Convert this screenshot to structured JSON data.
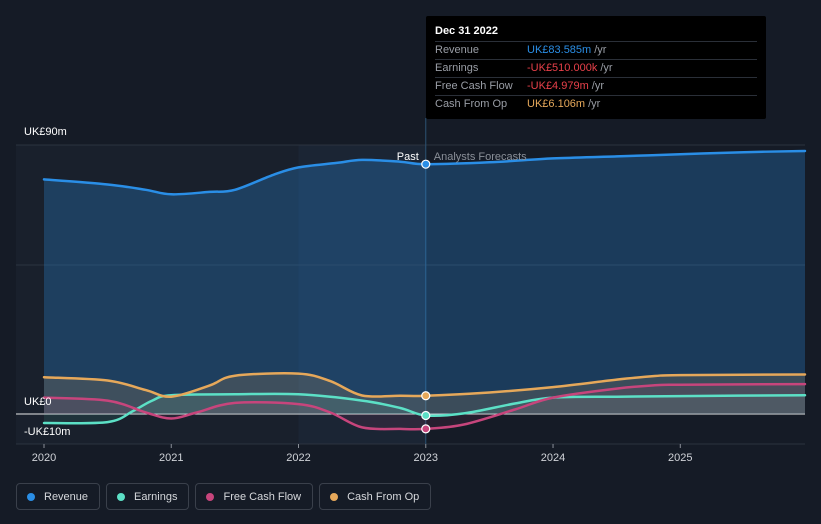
{
  "chart_data": {
    "type": "line",
    "y_axis_labels": [
      "UK£90m",
      "UK£0",
      "-UK£10m"
    ],
    "ylim": [
      -10,
      90
    ],
    "x_ticks": [
      "2020",
      "2021",
      "2022",
      "2023",
      "2024",
      "2025"
    ],
    "xlim": [
      2019.78,
      2025.98
    ],
    "past_label": "Past",
    "forecast_label": "Analysts Forecasts",
    "divider_x": 2023.0,
    "highlight_from": 2022.0,
    "series": [
      {
        "name": "Revenue",
        "color": "#2a8ee6",
        "points": [
          [
            2020.0,
            78.5
          ],
          [
            2020.5,
            76.8
          ],
          [
            2020.8,
            75.0
          ],
          [
            2021.0,
            73.5
          ],
          [
            2021.3,
            74.3
          ],
          [
            2021.5,
            75.0
          ],
          [
            2021.8,
            80.0
          ],
          [
            2022.0,
            82.5
          ],
          [
            2022.3,
            84.0
          ],
          [
            2022.5,
            85.0
          ],
          [
            2022.8,
            84.4
          ],
          [
            2023.0,
            83.585
          ],
          [
            2023.5,
            84.2
          ],
          [
            2024.0,
            85.5
          ],
          [
            2024.5,
            86.2
          ],
          [
            2025.0,
            86.9
          ],
          [
            2025.5,
            87.6
          ],
          [
            2025.98,
            88.0
          ]
        ]
      },
      {
        "name": "Earnings",
        "color": "#5ce0c6",
        "points": [
          [
            2020.0,
            -3.0
          ],
          [
            2020.5,
            -2.7
          ],
          [
            2020.7,
            1.0
          ],
          [
            2020.85,
            4.5
          ],
          [
            2021.0,
            6.3
          ],
          [
            2021.5,
            6.6
          ],
          [
            2022.0,
            6.6
          ],
          [
            2022.5,
            4.5
          ],
          [
            2022.8,
            2.0
          ],
          [
            2023.0,
            -0.51
          ],
          [
            2023.3,
            0.2
          ],
          [
            2023.7,
            3.5
          ],
          [
            2024.0,
            5.5
          ],
          [
            2024.5,
            5.8
          ],
          [
            2025.0,
            6.0
          ],
          [
            2025.98,
            6.3
          ]
        ]
      },
      {
        "name": "Free Cash Flow",
        "color": "#c7457c",
        "points": [
          [
            2020.0,
            5.5
          ],
          [
            2020.5,
            4.5
          ],
          [
            2020.8,
            0.5
          ],
          [
            2021.0,
            -1.5
          ],
          [
            2021.2,
            0.5
          ],
          [
            2021.5,
            3.7
          ],
          [
            2022.0,
            3.3
          ],
          [
            2022.25,
            0.5
          ],
          [
            2022.5,
            -4.5
          ],
          [
            2022.8,
            -5.0
          ],
          [
            2023.0,
            -4.979
          ],
          [
            2023.3,
            -3.5
          ],
          [
            2023.7,
            1.5
          ],
          [
            2024.0,
            5.5
          ],
          [
            2024.5,
            8.5
          ],
          [
            2024.8,
            9.6
          ],
          [
            2025.0,
            9.8
          ],
          [
            2025.98,
            10.0
          ]
        ]
      },
      {
        "name": "Cash From Op",
        "color": "#e6a85a",
        "points": [
          [
            2020.0,
            12.3
          ],
          [
            2020.5,
            11.2
          ],
          [
            2020.8,
            8.0
          ],
          [
            2021.0,
            5.8
          ],
          [
            2021.3,
            9.5
          ],
          [
            2021.5,
            12.8
          ],
          [
            2022.0,
            13.5
          ],
          [
            2022.25,
            11.0
          ],
          [
            2022.5,
            6.2
          ],
          [
            2022.8,
            6.1
          ],
          [
            2023.0,
            6.106
          ],
          [
            2023.5,
            7.2
          ],
          [
            2024.0,
            9.0
          ],
          [
            2024.5,
            11.5
          ],
          [
            2024.8,
            12.7
          ],
          [
            2025.0,
            13.0
          ],
          [
            2025.98,
            13.2
          ]
        ]
      }
    ]
  },
  "tooltip": {
    "date": "Dec 31 2022",
    "rows": [
      {
        "label": "Revenue",
        "value": "UK£83.585m",
        "unit": "/yr",
        "color": "#2a8ee6"
      },
      {
        "label": "Earnings",
        "value": "-UK£510.000k",
        "unit": "/yr",
        "color": "#e8404a"
      },
      {
        "label": "Free Cash Flow",
        "value": "-UK£4.979m",
        "unit": "/yr",
        "color": "#e8404a"
      },
      {
        "label": "Cash From Op",
        "value": "UK£6.106m",
        "unit": "/yr",
        "color": "#e6a85a"
      }
    ]
  },
  "legend": [
    {
      "label": "Revenue",
      "color": "#2a8ee6"
    },
    {
      "label": "Earnings",
      "color": "#5ce0c6"
    },
    {
      "label": "Free Cash Flow",
      "color": "#c7457c"
    },
    {
      "label": "Cash From Op",
      "color": "#e6a85a"
    }
  ]
}
